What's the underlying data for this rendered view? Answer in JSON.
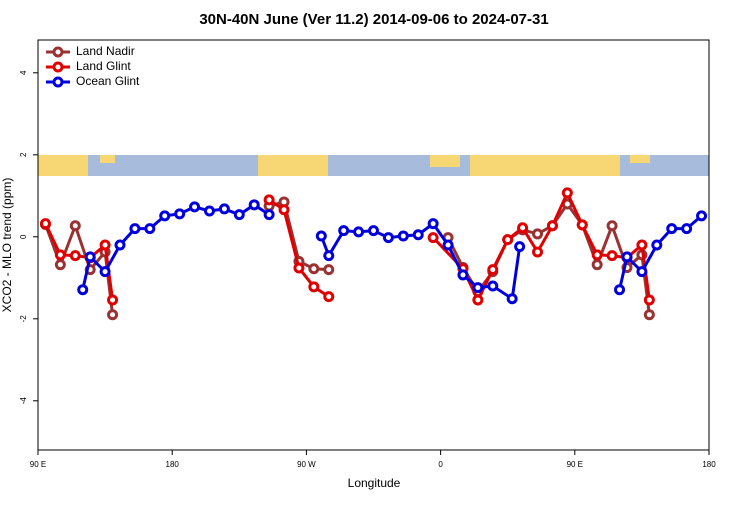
{
  "chart_data": {
    "type": "line",
    "title": "30N-40N June (Ver 11.2)   2014-09-06 to 2024-07-31",
    "xlabel": "Longitude",
    "ylabel": "XCO2 - MLO trend (ppm)",
    "xlim": [
      90,
      540
    ],
    "ylim": [
      -5.2,
      4.8
    ],
    "xticks": [
      {
        "value": 90,
        "label": "90 E"
      },
      180,
      {
        "value": 270,
        "label": "90 W"
      },
      {
        "value": 360,
        "label": "0"
      },
      {
        "value": 450,
        "label": "90 E"
      },
      {
        "value": 540,
        "label": "180"
      }
    ],
    "yticks": [
      -4,
      -2,
      0,
      2,
      4
    ],
    "legend": "top-left",
    "series": [
      {
        "name": "Land Nadir",
        "color": "#993333",
        "x": [
          95,
          105,
          115,
          125,
          135,
          140,
          null,
          245,
          255,
          265,
          275,
          285,
          null,
          365,
          375,
          385,
          395,
          405,
          415,
          425,
          435,
          445,
          455,
          465,
          475,
          485,
          495,
          500
        ],
        "values": [
          0.3,
          -0.68,
          0.27,
          -0.8,
          -0.37,
          -1.9,
          null,
          0.75,
          0.85,
          -0.6,
          -0.78,
          -0.8,
          null,
          -0.02,
          -0.75,
          -1.34,
          -0.85,
          -0.07,
          0.17,
          0.07,
          0.27,
          0.8,
          0.29,
          -0.68,
          0.27,
          -0.75,
          -0.44,
          -1.9
        ]
      },
      {
        "name": "Land Glint",
        "color": "#e00000",
        "x": [
          95,
          105,
          115,
          125,
          135,
          140,
          null,
          245,
          255,
          265,
          275,
          285,
          null,
          355,
          375,
          385,
          395,
          405,
          415,
          425,
          435,
          445,
          455,
          465,
          475,
          485,
          495,
          500
        ],
        "values": [
          0.32,
          -0.44,
          -0.46,
          -0.51,
          -0.2,
          -1.54,
          null,
          0.9,
          0.66,
          -0.76,
          -1.22,
          -1.46,
          null,
          -0.02,
          -0.78,
          -1.54,
          -0.8,
          -0.07,
          0.22,
          -0.37,
          0.27,
          1.07,
          0.29,
          -0.44,
          -0.46,
          -0.51,
          -0.2,
          -1.54
        ]
      },
      {
        "name": "Ocean Glint",
        "color": "#0000dd",
        "x": [
          120,
          125,
          135,
          145,
          155,
          165,
          175,
          185,
          195,
          205,
          215,
          225,
          235,
          245,
          null,
          280,
          285,
          295,
          305,
          315,
          325,
          335,
          345,
          355,
          365,
          375,
          385,
          395,
          408,
          413,
          null,
          480,
          485,
          495,
          505,
          515,
          525,
          535
        ],
        "values": [
          -1.29,
          -0.49,
          -0.85,
          -0.2,
          0.2,
          0.2,
          0.51,
          0.56,
          0.73,
          0.63,
          0.68,
          0.54,
          0.78,
          0.54,
          null,
          0.02,
          -0.46,
          0.15,
          0.12,
          0.15,
          -0.02,
          0.02,
          0.05,
          0.32,
          -0.2,
          -0.93,
          -1.24,
          -1.2,
          -1.51,
          -0.24,
          null,
          -1.29,
          -0.49,
          -0.85,
          -0.2,
          0.2,
          0.2,
          0.51
        ]
      }
    ]
  }
}
